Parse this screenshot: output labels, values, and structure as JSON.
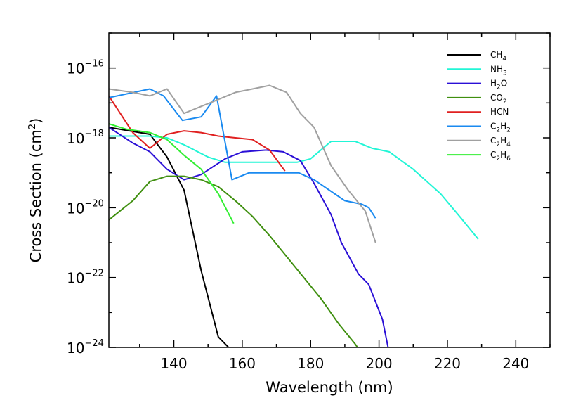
{
  "chart_data": {
    "type": "line",
    "title": "",
    "xlabel": "Wavelength (nm)",
    "ylabel": "Cross Section (cm²)",
    "ylabel_parts": {
      "text": "Cross Section (cm",
      "sup": "2",
      "close": ")"
    },
    "xlim": [
      121,
      250
    ],
    "ylim_log10": [
      -24,
      -15
    ],
    "yscale": "log",
    "grid": false,
    "legend_position": "top-right",
    "x_ticks": [
      140,
      160,
      180,
      200,
      220,
      240
    ],
    "y_ticks": [
      {
        "base": "10",
        "exp": "−16",
        "log10": -16
      },
      {
        "base": "10",
        "exp": "−18",
        "log10": -18
      },
      {
        "base": "10",
        "exp": "−20",
        "log10": -20
      },
      {
        "base": "10",
        "exp": "−22",
        "log10": -22
      },
      {
        "base": "10",
        "exp": "−24",
        "log10": -24
      }
    ],
    "series": [
      {
        "name": "CH4",
        "label_parts": [
          [
            "CH",
            ""
          ],
          [
            "4",
            "sub"
          ]
        ],
        "color": "#000000",
        "x": [
          121,
          133,
          138,
          143,
          148,
          153,
          157.5
        ],
        "log10_y": [
          -17.7,
          -17.9,
          -18.55,
          -19.5,
          -21.8,
          -23.7,
          -24.15
        ]
      },
      {
        "name": "NH3",
        "label_parts": [
          [
            "NH",
            ""
          ],
          [
            "3",
            "sub"
          ]
        ],
        "color": "#22f5d6",
        "x": [
          121,
          133,
          138,
          143,
          150,
          155,
          165,
          176,
          180,
          186,
          193,
          198,
          203,
          210,
          218,
          224,
          229
        ],
        "log10_y": [
          -17.95,
          -17.95,
          -18.0,
          -18.2,
          -18.55,
          -18.7,
          -18.7,
          -18.7,
          -18.6,
          -18.1,
          -18.1,
          -18.3,
          -18.4,
          -18.9,
          -19.6,
          -20.3,
          -20.9
        ]
      },
      {
        "name": "H2O",
        "label_parts": [
          [
            "H",
            ""
          ],
          [
            "2",
            "sub"
          ],
          [
            "O",
            ""
          ]
        ],
        "color": "#2a0fd6",
        "x": [
          121,
          128,
          133,
          138,
          143,
          148,
          155,
          160,
          167,
          172,
          177,
          181,
          186,
          189,
          194,
          197,
          201,
          204.5
        ],
        "log10_y": [
          -17.7,
          -18.15,
          -18.4,
          -18.9,
          -19.2,
          -19.05,
          -18.6,
          -18.4,
          -18.35,
          -18.4,
          -18.65,
          -19.3,
          -20.2,
          -21.0,
          -21.9,
          -22.2,
          -23.2,
          -24.9
        ]
      },
      {
        "name": "CO2",
        "label_parts": [
          [
            "CO",
            ""
          ],
          [
            "2",
            "sub"
          ]
        ],
        "color": "#3f8f0f",
        "x": [
          121,
          128,
          133,
          138,
          143,
          148,
          153,
          158,
          163,
          168,
          173,
          178,
          183,
          188,
          193,
          198,
          201
        ],
        "log10_y": [
          -20.35,
          -19.8,
          -19.25,
          -19.1,
          -19.1,
          -19.2,
          -19.4,
          -19.8,
          -20.25,
          -20.8,
          -21.4,
          -22.0,
          -22.6,
          -23.3,
          -23.9,
          -24.6,
          -25.0
        ]
      },
      {
        "name": "HCN",
        "label_parts": [
          [
            "HCN",
            ""
          ]
        ],
        "color": "#e02020",
        "x": [
          121,
          128,
          133,
          138,
          143,
          148,
          153,
          158,
          163,
          168,
          172.5
        ],
        "log10_y": [
          -16.8,
          -17.85,
          -18.3,
          -17.9,
          -17.8,
          -17.85,
          -17.95,
          -18.0,
          -18.05,
          -18.35,
          -18.95
        ]
      },
      {
        "name": "C2H2",
        "label_parts": [
          [
            "C",
            ""
          ],
          [
            "2",
            "sub"
          ],
          [
            "H",
            ""
          ],
          [
            "2",
            "sub"
          ]
        ],
        "color": "#1a8af0",
        "x": [
          121,
          133,
          137,
          142.5,
          148,
          152.5,
          157,
          162,
          167,
          172,
          176.5,
          181,
          187,
          190,
          195,
          197,
          199
        ],
        "log10_y": [
          -16.85,
          -16.6,
          -16.8,
          -17.5,
          -17.4,
          -16.8,
          -19.2,
          -19.0,
          -19.0,
          -19.0,
          -19.0,
          -19.2,
          -19.6,
          -19.8,
          -19.9,
          -20.0,
          -20.3
        ]
      },
      {
        "name": "C2H4",
        "label_parts": [
          [
            "C",
            ""
          ],
          [
            "2",
            "sub"
          ],
          [
            "H",
            ""
          ],
          [
            "4",
            "sub"
          ]
        ],
        "color": "#a0a0a0",
        "x": [
          121,
          128,
          133,
          138,
          143,
          148,
          153,
          158,
          163,
          168,
          173,
          177,
          181,
          186,
          191,
          196,
          199
        ],
        "log10_y": [
          -16.6,
          -16.7,
          -16.8,
          -16.6,
          -17.3,
          -17.1,
          -16.9,
          -16.7,
          -16.6,
          -16.5,
          -16.7,
          -17.3,
          -17.7,
          -18.8,
          -19.5,
          -20.1,
          -21.0
        ]
      },
      {
        "name": "C2H6",
        "label_parts": [
          [
            "C",
            ""
          ],
          [
            "2",
            "sub"
          ],
          [
            "H",
            ""
          ],
          [
            "6",
            "sub"
          ]
        ],
        "color": "#33ee33",
        "x": [
          121,
          126,
          133,
          138,
          143,
          148,
          153,
          157.5
        ],
        "log10_y": [
          -17.6,
          -17.75,
          -17.85,
          -18.05,
          -18.5,
          -18.9,
          -19.6,
          -20.45
        ]
      }
    ]
  }
}
